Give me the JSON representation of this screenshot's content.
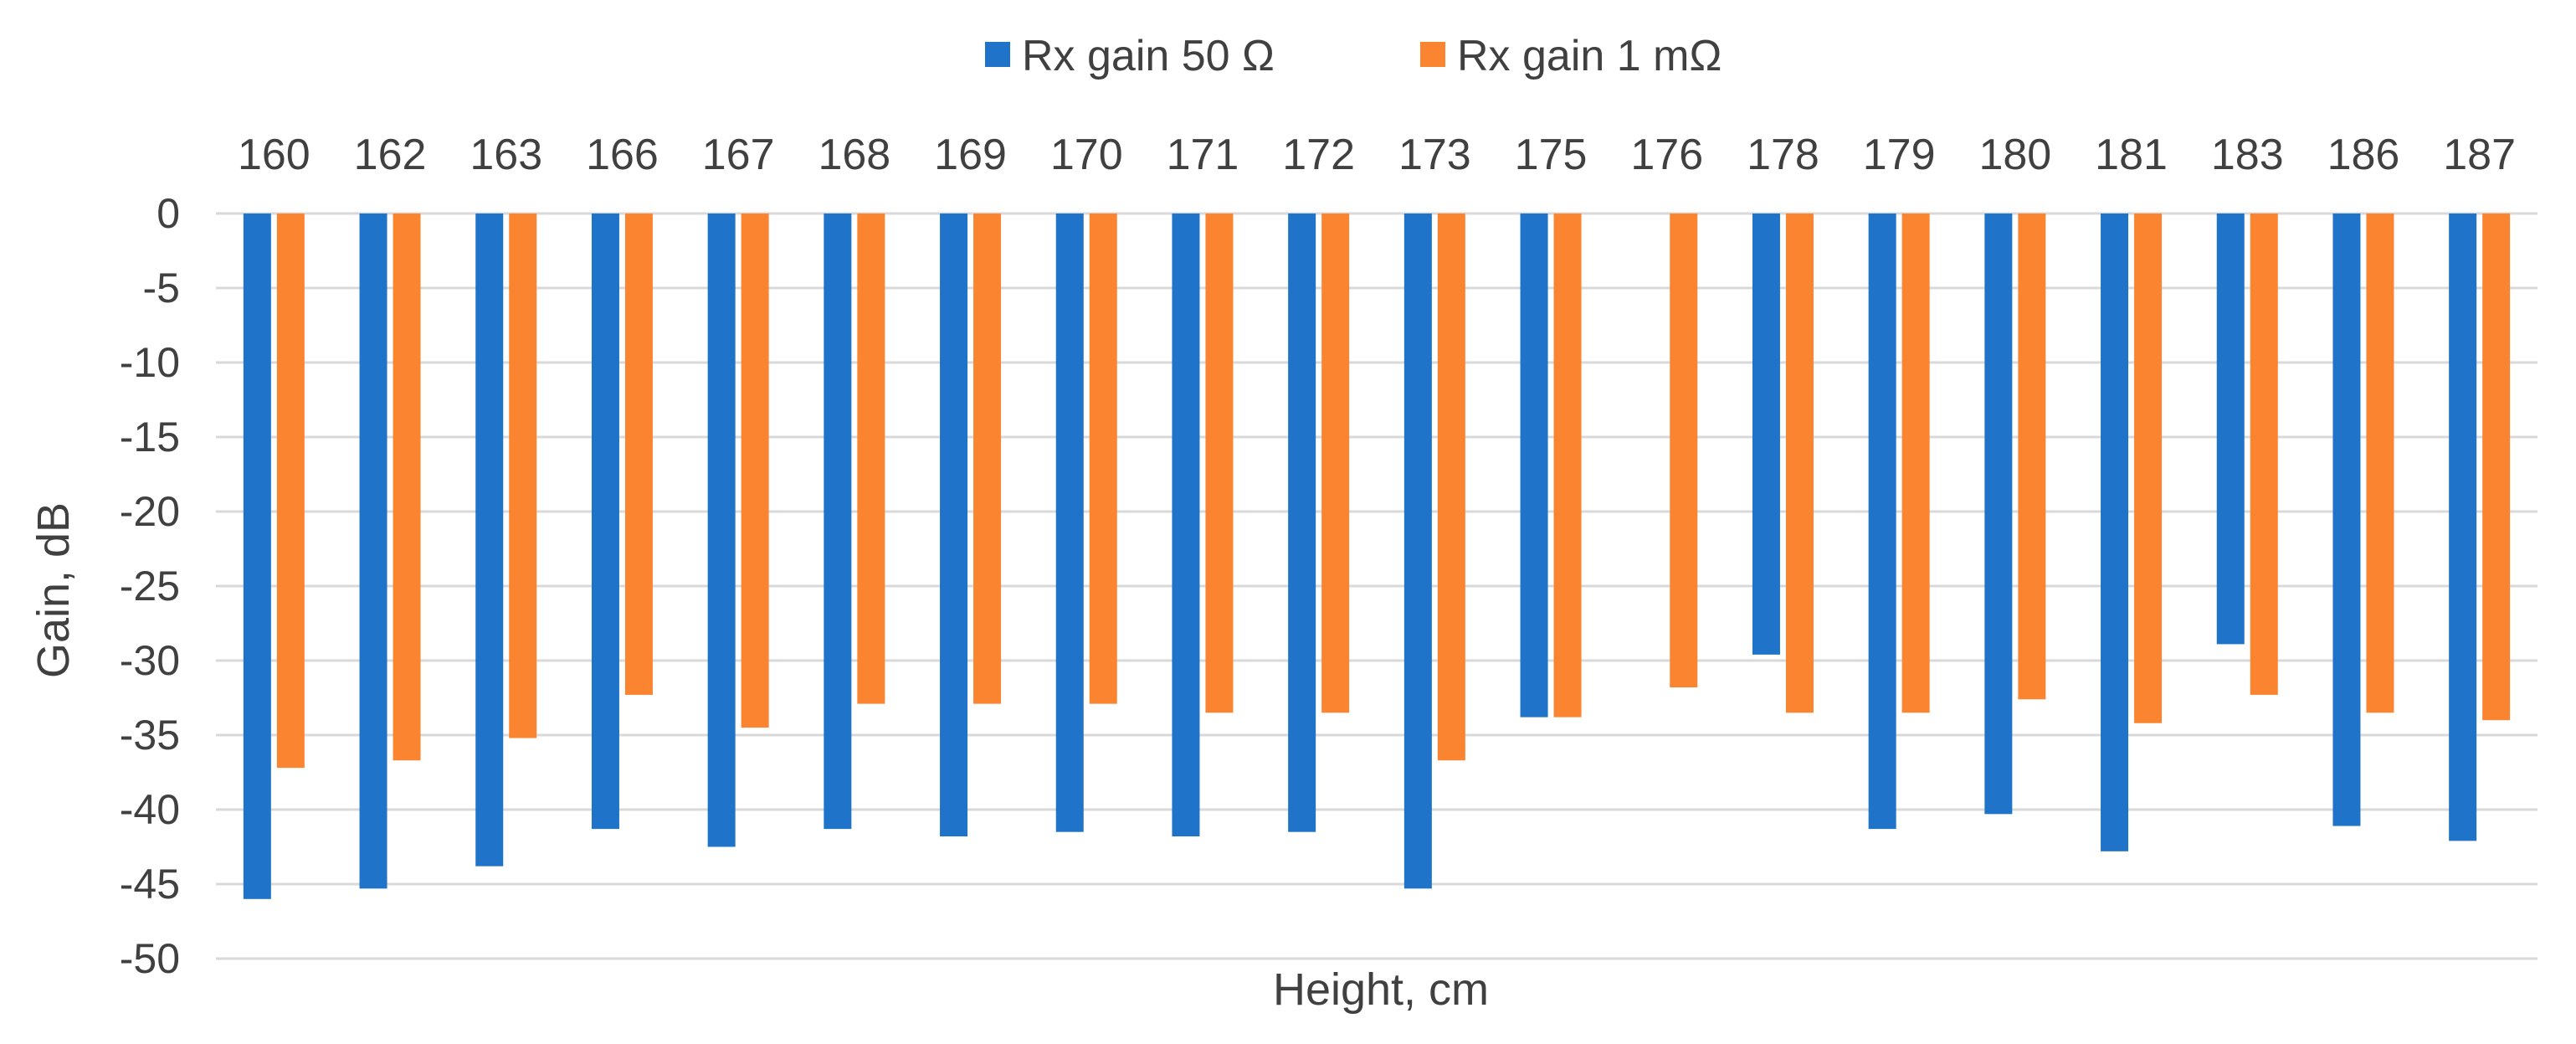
{
  "chart_data": {
    "type": "bar",
    "title": "",
    "xlabel": "Height, cm",
    "ylabel": "Gain, dB",
    "ylim": [
      -50,
      0
    ],
    "yticks": [
      0,
      -5,
      -10,
      -15,
      -20,
      -25,
      -30,
      -35,
      -40,
      -45,
      -50
    ],
    "grid": true,
    "legend_position": "top",
    "categories": [
      "160",
      "162",
      "163",
      "166",
      "167",
      "168",
      "169",
      "170",
      "171",
      "172",
      "173",
      "175",
      "176",
      "178",
      "179",
      "180",
      "181",
      "183",
      "186",
      "187"
    ],
    "series": [
      {
        "name": "Rx gain 50 Ω",
        "color": "#1f73c8",
        "values": [
          -46,
          -45.3,
          -43.8,
          -41.3,
          -42.5,
          -41.3,
          -41.8,
          -41.5,
          -41.8,
          -41.5,
          -45.3,
          -33.8,
          null,
          -29.6,
          -41.3,
          -40.3,
          -42.8,
          -28.9,
          -41.1,
          -42.1
        ]
      },
      {
        "name": "Rx gain 1 mΩ",
        "color": "#fb8431",
        "values": [
          -37.2,
          -36.7,
          -35.2,
          -32.3,
          -34.5,
          -32.9,
          -32.9,
          -32.9,
          -33.5,
          -33.5,
          -36.7,
          -33.8,
          -31.8,
          -33.5,
          -33.5,
          -32.6,
          -34.2,
          -32.3,
          -33.5,
          -34.0
        ]
      }
    ]
  }
}
